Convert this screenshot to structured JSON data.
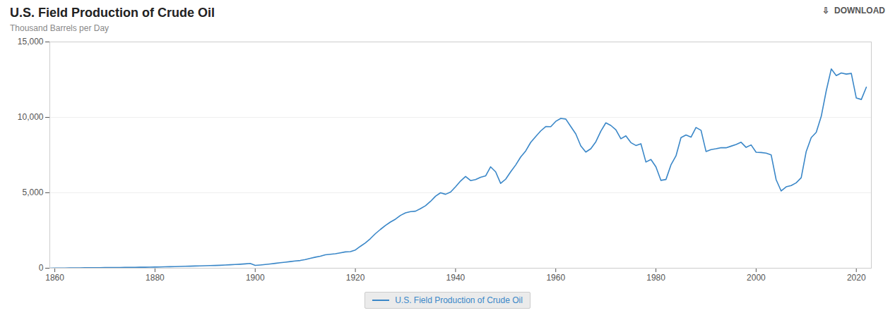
{
  "chart_data": {
    "type": "line",
    "title": "U.S. Field Production of Crude Oil",
    "subtitle": "Thousand Barrels per Day",
    "annotations": [
      "⇩  DOWNLOAD"
    ],
    "x": [
      1859,
      1860,
      1861,
      1862,
      1863,
      1864,
      1865,
      1866,
      1867,
      1868,
      1869,
      1870,
      1871,
      1872,
      1873,
      1874,
      1875,
      1876,
      1877,
      1878,
      1879,
      1880,
      1881,
      1882,
      1883,
      1884,
      1885,
      1886,
      1887,
      1888,
      1889,
      1890,
      1891,
      1892,
      1893,
      1894,
      1895,
      1896,
      1897,
      1898,
      1899,
      1900,
      1901,
      1902,
      1903,
      1904,
      1905,
      1906,
      1907,
      1908,
      1909,
      1910,
      1911,
      1912,
      1913,
      1914,
      1915,
      1916,
      1917,
      1918,
      1919,
      1920,
      1921,
      1922,
      1923,
      1924,
      1925,
      1926,
      1927,
      1928,
      1929,
      1930,
      1931,
      1932,
      1933,
      1934,
      1935,
      1936,
      1937,
      1938,
      1939,
      1940,
      1941,
      1942,
      1943,
      1944,
      1945,
      1946,
      1947,
      1948,
      1949,
      1950,
      1951,
      1952,
      1953,
      1954,
      1955,
      1956,
      1957,
      1958,
      1959,
      1960,
      1961,
      1962,
      1963,
      1964,
      1965,
      1966,
      1967,
      1968,
      1969,
      1970,
      1971,
      1972,
      1973,
      1974,
      1975,
      1976,
      1977,
      1978,
      1979,
      1980,
      1981,
      1982,
      1983,
      1984,
      1985,
      1986,
      1987,
      1988,
      1989,
      1990,
      1991,
      1992,
      1993,
      1994,
      1995,
      1996,
      1997,
      1998,
      1999,
      2000,
      2001,
      2002,
      2003,
      2004,
      2005,
      2006,
      2007,
      2008,
      2009,
      2010,
      2011,
      2012,
      2013,
      2014,
      2015,
      2016,
      2017,
      2018,
      2019,
      2020,
      2021,
      2022
    ],
    "series": [
      {
        "name": "U.S. Field Production of Crude Oil",
        "color": "#3a87c8",
        "values": [
          2,
          5,
          10,
          14,
          18,
          22,
          26,
          30,
          33,
          35,
          38,
          41,
          44,
          47,
          50,
          53,
          56,
          59,
          62,
          65,
          68,
          74,
          82,
          90,
          98,
          107,
          116,
          125,
          135,
          145,
          155,
          162,
          172,
          182,
          195,
          210,
          226,
          244,
          265,
          287,
          312,
          185,
          213,
          245,
          280,
          320,
          360,
          398,
          440,
          478,
          510,
          576,
          654,
          730,
          795,
          885,
          920,
          960,
          1020,
          1080,
          1100,
          1207,
          1450,
          1680,
          1960,
          2290,
          2570,
          2830,
          3060,
          3250,
          3500,
          3667,
          3750,
          3780,
          3950,
          4140,
          4430,
          4770,
          5000,
          4900,
          5050,
          5400,
          5780,
          6080,
          5807,
          5880,
          6030,
          6120,
          6720,
          6390,
          5620,
          5900,
          6390,
          6840,
          7370,
          7770,
          8340,
          8730,
          9100,
          9390,
          9380,
          9735,
          9930,
          9890,
          9390,
          8900,
          8110,
          7700,
          7920,
          8380,
          9080,
          9637,
          9463,
          9177,
          8582,
          8771,
          8325,
          8136,
          8251,
          7038,
          7207,
          6715,
          5822,
          5882,
          6848,
          7443,
          8654,
          8835,
          8688,
          9330,
          9142,
          7739,
          7866,
          7917,
          7990,
          7983,
          8090,
          8204,
          8349,
          8011,
          8173,
          7689,
          7669,
          7628,
          7516,
          5865,
          5119,
          5393,
          5476,
          5660,
          5996,
          7735,
          8655,
          9006,
          10065,
          11764,
          13210,
          12769,
          12945,
          12869,
          12916,
          11283,
          11185,
          12000
        ]
      }
    ],
    "xlim": [
      1859,
      2023
    ],
    "xticks": [
      1860,
      1880,
      1900,
      1920,
      1940,
      1960,
      1980,
      2000,
      2020
    ],
    "ylim": [
      0,
      15000
    ],
    "yticks": [
      0,
      {
        "value": 5000,
        "label": "5,000"
      },
      {
        "value": 10000,
        "label": "10,000"
      },
      {
        "value": 15000,
        "label": "15,000"
      }
    ],
    "grid": "y",
    "legend": "bottom"
  }
}
